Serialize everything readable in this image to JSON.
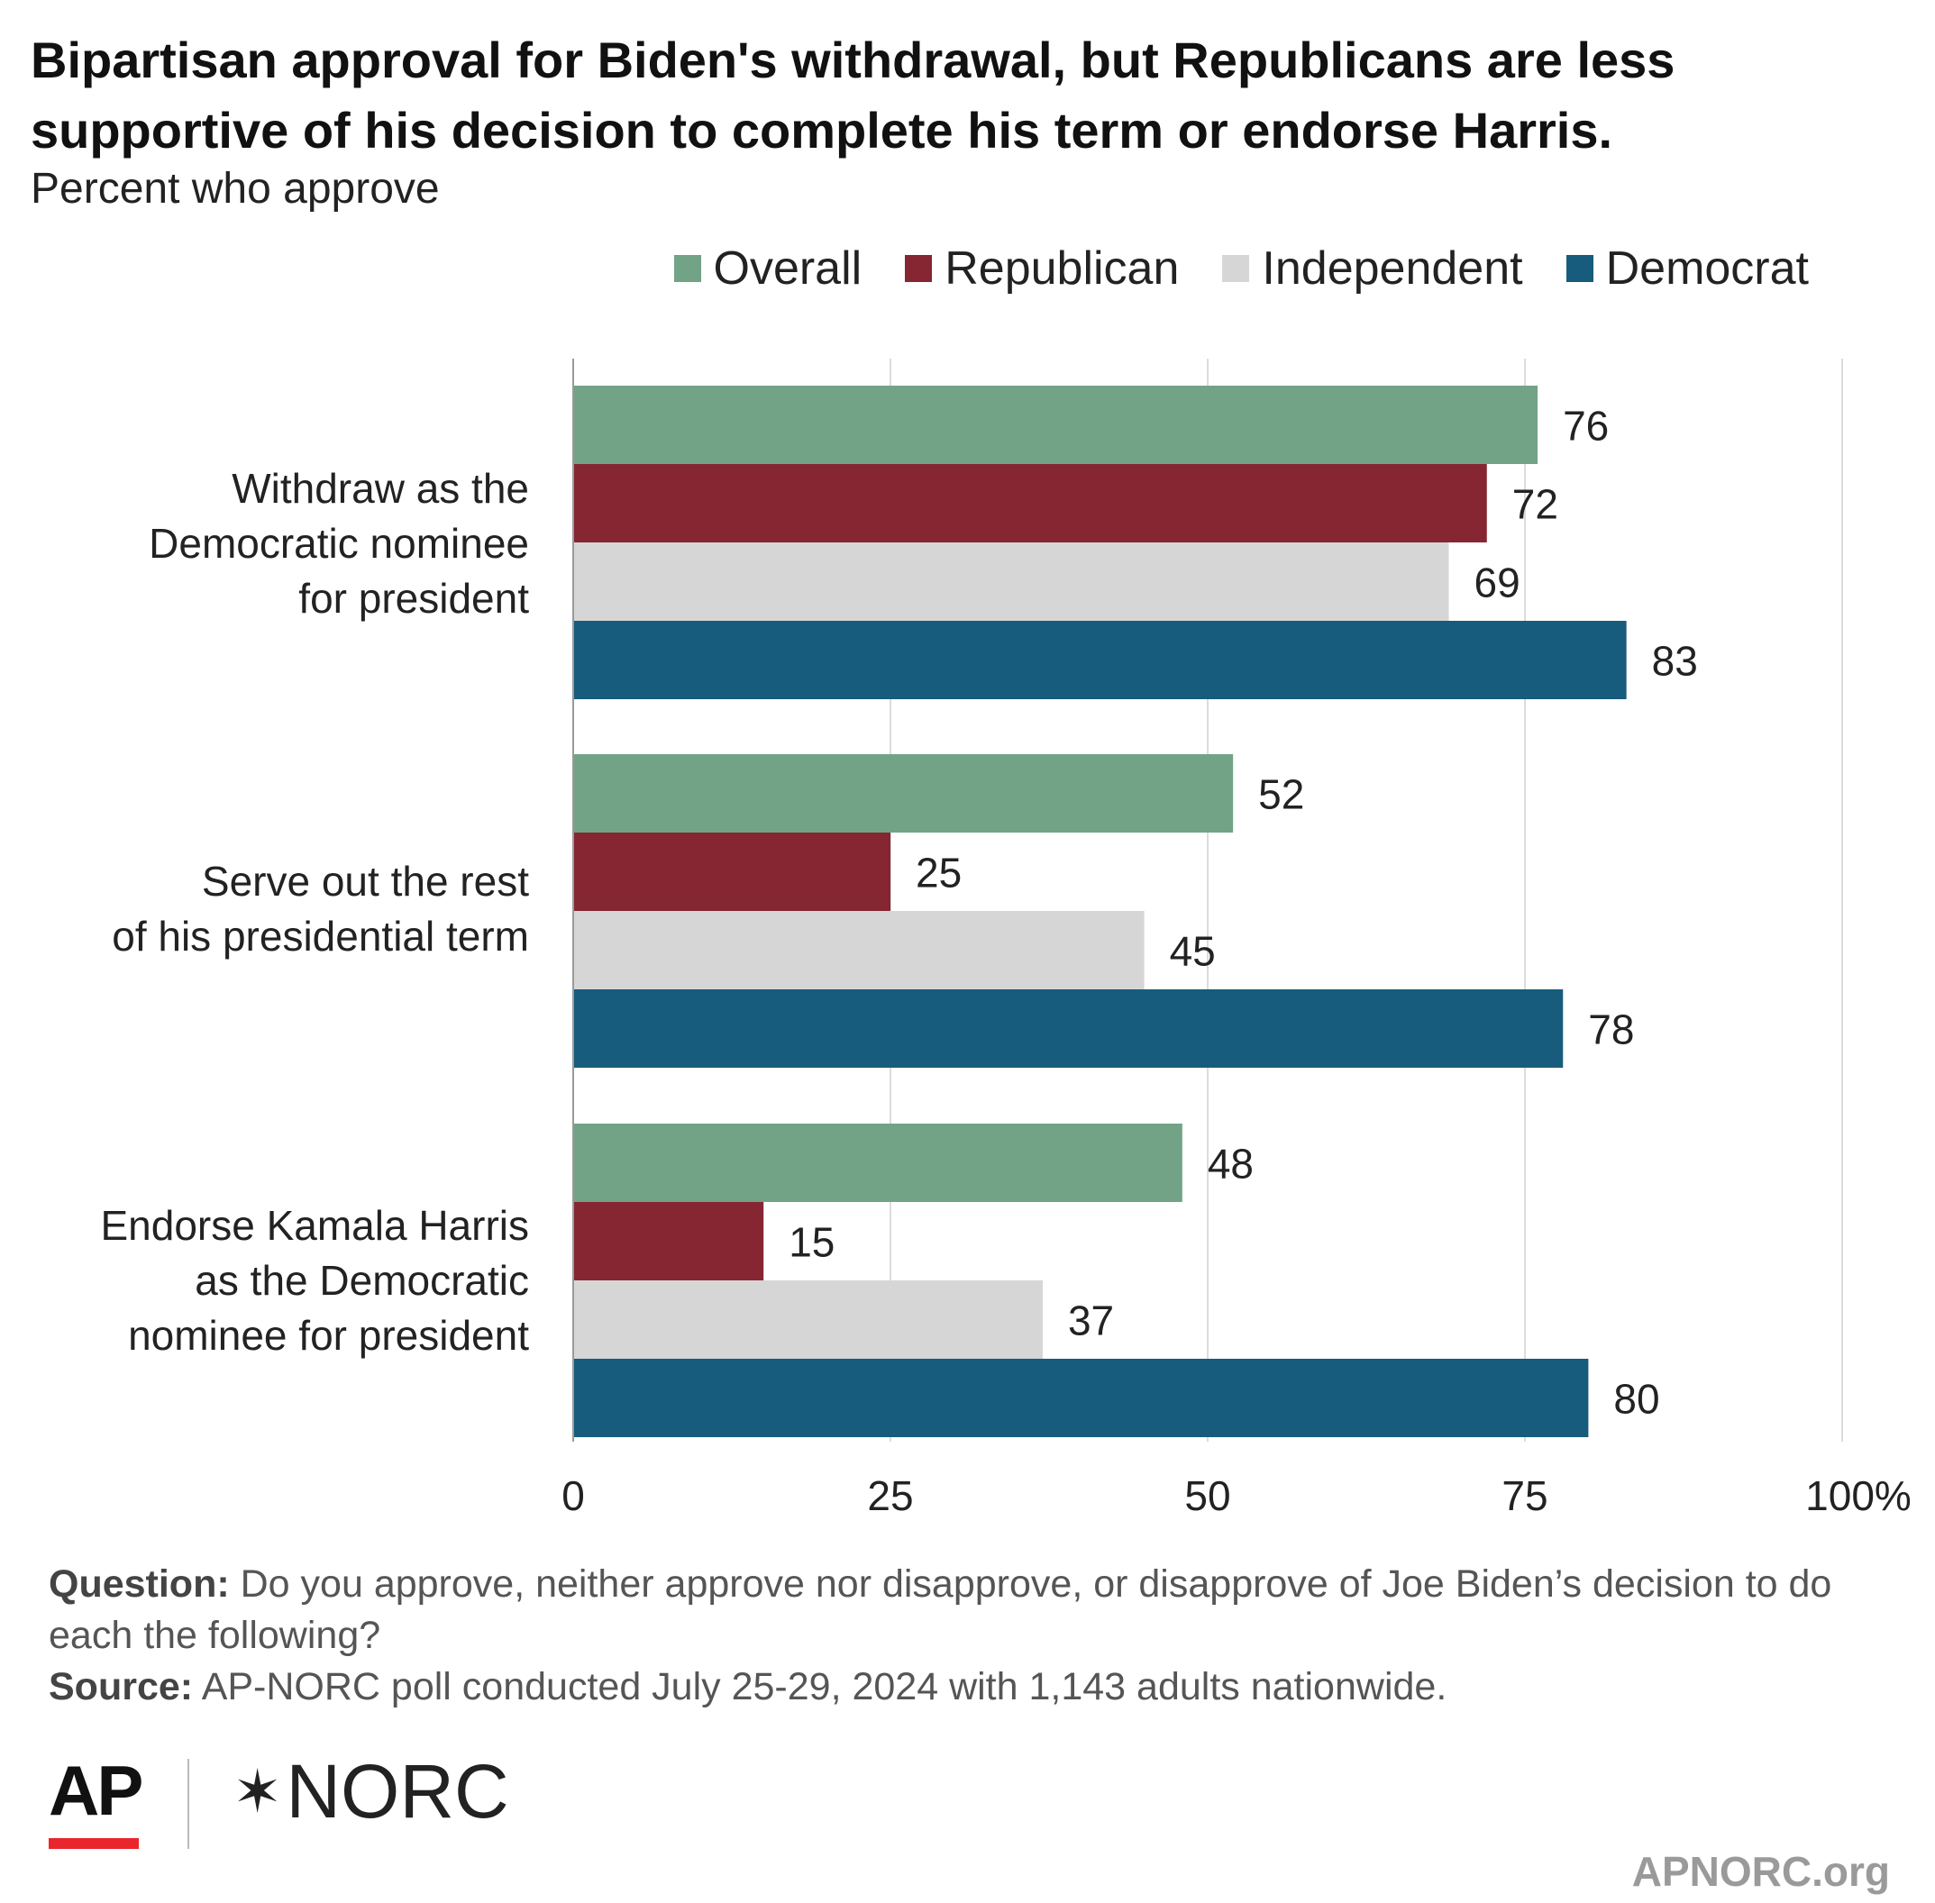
{
  "title": "Bipartisan approval for Biden's withdrawal, but Republicans are less supportive of his decision to complete his term or endorse Harris.",
  "subtitle": "Percent who approve",
  "legend": [
    {
      "name": "Overall",
      "color": "#72a387"
    },
    {
      "name": "Republican",
      "color": "#862633"
    },
    {
      "name": "Independent",
      "color": "#d6d6d6"
    },
    {
      "name": "Democrat",
      "color": "#175c7c"
    }
  ],
  "chart_data": {
    "type": "bar",
    "orientation": "horizontal",
    "categories": [
      "Withdraw as the\nDemocratic nominee\nfor president",
      "Serve out the rest\nof his presidential term",
      "Endorse Kamala Harris\nas the Democratic\nnominee for president"
    ],
    "series": [
      {
        "name": "Overall",
        "color": "#72a387",
        "values": [
          76,
          52,
          48
        ]
      },
      {
        "name": "Republican",
        "color": "#862633",
        "values": [
          72,
          25,
          15
        ]
      },
      {
        "name": "Independent",
        "color": "#d6d6d6",
        "values": [
          69,
          45,
          37
        ]
      },
      {
        "name": "Democrat",
        "color": "#175c7c",
        "values": [
          83,
          78,
          80
        ]
      }
    ],
    "xlim": [
      0,
      100
    ],
    "xticks": [
      "0",
      "25",
      "50",
      "75",
      "100%"
    ],
    "grid": true,
    "legend_position": "top-right"
  },
  "footer": {
    "question_label": "Question:",
    "question_text": "Do you approve, neither approve nor disapprove, or disapprove of Joe Biden’s decision to do each the following?",
    "source_label": "Source:",
    "source_text": "AP-NORC poll conducted July 25-29, 2024 with 1,143 adults nationwide."
  },
  "logos": {
    "ap": "AP",
    "norc": "NORC",
    "norc_mark": "✶"
  },
  "site": "APNORC.org"
}
